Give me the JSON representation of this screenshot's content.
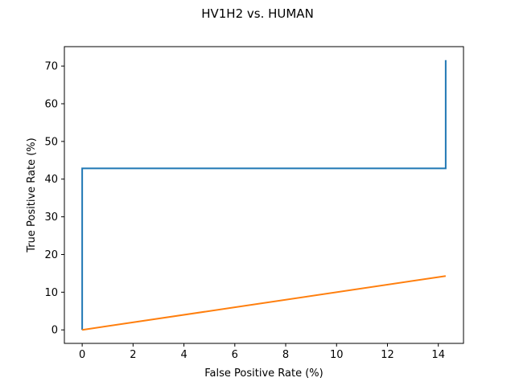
{
  "chart_data": {
    "type": "line",
    "title": "HV1H2 vs. HUMAN",
    "xlabel": "False Positive Rate (%)",
    "ylabel": "True Positive Rate (%)",
    "xlim": [
      -0.7,
      14.99
    ],
    "ylim": [
      -3.58,
      75.15
    ],
    "xticks": [
      0,
      2,
      4,
      6,
      8,
      10,
      12,
      14
    ],
    "yticks": [
      0,
      10,
      20,
      30,
      40,
      50,
      60,
      70
    ],
    "grid": false,
    "series": [
      {
        "color": "#1f77b4",
        "points": [
          [
            0,
            0
          ],
          [
            0,
            42.86
          ],
          [
            14.29,
            42.86
          ],
          [
            14.29,
            71.57
          ]
        ]
      },
      {
        "color": "#ff7f0e",
        "points": [
          [
            0,
            0
          ],
          [
            14.29,
            14.29
          ]
        ]
      }
    ]
  }
}
